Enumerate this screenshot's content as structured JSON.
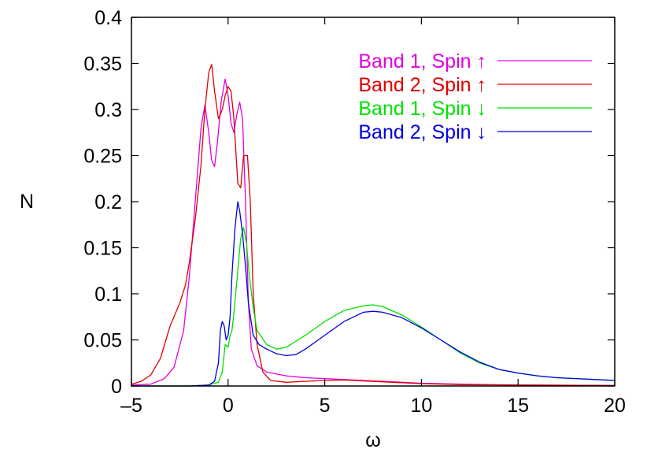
{
  "chart_data": {
    "type": "line",
    "title": "",
    "xlabel": "ω",
    "ylabel": "N",
    "xlim": [
      -5,
      20
    ],
    "ylim": [
      0,
      0.4
    ],
    "grid": false,
    "legend_position": "top-right",
    "xticks": [
      -5,
      0,
      5,
      10,
      15,
      20
    ],
    "xtick_labels": [
      "–5",
      "0",
      "5",
      "10",
      "15",
      "20"
    ],
    "yticks": [
      0,
      0.05,
      0.1,
      0.15,
      0.2,
      0.25,
      0.3,
      0.35,
      0.4
    ],
    "ytick_labels": [
      "0",
      "0.05",
      "0.1",
      "0.15",
      "0.2",
      "0.25",
      "0.3",
      "0.35",
      "0.4"
    ],
    "series": [
      {
        "name": "Band 1, Spin ↑",
        "color": "#e000e0",
        "points": [
          [
            -5,
            0.001
          ],
          [
            -4,
            0.002
          ],
          [
            -3.3,
            0.008
          ],
          [
            -2.8,
            0.02
          ],
          [
            -2.3,
            0.06
          ],
          [
            -2,
            0.12
          ],
          [
            -1.7,
            0.2
          ],
          [
            -1.4,
            0.28
          ],
          [
            -1.2,
            0.305
          ],
          [
            -1,
            0.275
          ],
          [
            -0.85,
            0.245
          ],
          [
            -0.7,
            0.238
          ],
          [
            -0.55,
            0.265
          ],
          [
            -0.35,
            0.31
          ],
          [
            -0.15,
            0.333
          ],
          [
            0,
            0.315
          ],
          [
            0.15,
            0.285
          ],
          [
            0.3,
            0.275
          ],
          [
            0.45,
            0.295
          ],
          [
            0.6,
            0.308
          ],
          [
            0.75,
            0.29
          ],
          [
            0.9,
            0.2
          ],
          [
            1.05,
            0.09
          ],
          [
            1.2,
            0.04
          ],
          [
            1.5,
            0.022
          ],
          [
            2,
            0.015
          ],
          [
            3,
            0.011
          ],
          [
            4,
            0.009
          ],
          [
            5,
            0.008
          ],
          [
            6,
            0.007
          ],
          [
            7,
            0.006
          ],
          [
            8,
            0.005
          ],
          [
            9,
            0.004
          ],
          [
            10,
            0.003
          ],
          [
            12,
            0.002
          ],
          [
            15,
            0.001
          ],
          [
            20,
            0.0005
          ]
        ]
      },
      {
        "name": "Band 2, Spin ↑",
        "color": "#e00000",
        "points": [
          [
            -5,
            0.002
          ],
          [
            -4.5,
            0.005
          ],
          [
            -4,
            0.012
          ],
          [
            -3.5,
            0.03
          ],
          [
            -3,
            0.065
          ],
          [
            -2.5,
            0.09
          ],
          [
            -2.2,
            0.11
          ],
          [
            -2,
            0.135
          ],
          [
            -1.7,
            0.18
          ],
          [
            -1.4,
            0.24
          ],
          [
            -1.2,
            0.3
          ],
          [
            -1,
            0.34
          ],
          [
            -0.85,
            0.349
          ],
          [
            -0.7,
            0.32
          ],
          [
            -0.5,
            0.29
          ],
          [
            -0.3,
            0.3
          ],
          [
            -0.15,
            0.315
          ],
          [
            0,
            0.325
          ],
          [
            0.15,
            0.32
          ],
          [
            0.3,
            0.29
          ],
          [
            0.5,
            0.22
          ],
          [
            0.65,
            0.215
          ],
          [
            0.8,
            0.25
          ],
          [
            1,
            0.25
          ],
          [
            1.15,
            0.2
          ],
          [
            1.3,
            0.1
          ],
          [
            1.5,
            0.045
          ],
          [
            1.8,
            0.015
          ],
          [
            2.2,
            0.006
          ],
          [
            3,
            0.004
          ],
          [
            4,
            0.005
          ],
          [
            5,
            0.006
          ],
          [
            6,
            0.0065
          ],
          [
            7,
            0.0055
          ],
          [
            8,
            0.0045
          ],
          [
            9,
            0.0035
          ],
          [
            10,
            0.0025
          ],
          [
            12,
            0.0015
          ],
          [
            15,
            0.001
          ],
          [
            20,
            0.0005
          ]
        ]
      },
      {
        "name": "Band 1, Spin ↓",
        "color": "#00e000",
        "points": [
          [
            -5,
            0
          ],
          [
            -2,
            0
          ],
          [
            -1,
            0.001
          ],
          [
            -0.5,
            0.004
          ],
          [
            -0.3,
            0.015
          ],
          [
            -0.15,
            0.045
          ],
          [
            0,
            0.042
          ],
          [
            0.1,
            0.055
          ],
          [
            0.2,
            0.06
          ],
          [
            0.35,
            0.09
          ],
          [
            0.5,
            0.125
          ],
          [
            0.65,
            0.16
          ],
          [
            0.8,
            0.172
          ],
          [
            0.95,
            0.155
          ],
          [
            1.1,
            0.12
          ],
          [
            1.3,
            0.085
          ],
          [
            1.5,
            0.06
          ],
          [
            2,
            0.045
          ],
          [
            2.5,
            0.04
          ],
          [
            3,
            0.042
          ],
          [
            4,
            0.055
          ],
          [
            5,
            0.07
          ],
          [
            6,
            0.082
          ],
          [
            7,
            0.087
          ],
          [
            7.5,
            0.088
          ],
          [
            8,
            0.086
          ],
          [
            9,
            0.077
          ],
          [
            10,
            0.064
          ],
          [
            11,
            0.05
          ],
          [
            12,
            0.036
          ],
          [
            13,
            0.025
          ],
          [
            14,
            0.018
          ],
          [
            15,
            0.014
          ],
          [
            16,
            0.011
          ],
          [
            17,
            0.009
          ],
          [
            18,
            0.008
          ],
          [
            19,
            0.007
          ],
          [
            20,
            0.006
          ]
        ]
      },
      {
        "name": "Band 2, Spin ↓",
        "color": "#0000e0",
        "points": [
          [
            -5,
            0
          ],
          [
            -2,
            0
          ],
          [
            -1,
            0.001
          ],
          [
            -0.7,
            0.005
          ],
          [
            -0.5,
            0.025
          ],
          [
            -0.4,
            0.06
          ],
          [
            -0.3,
            0.07
          ],
          [
            -0.2,
            0.065
          ],
          [
            -0.1,
            0.05
          ],
          [
            0,
            0.055
          ],
          [
            0.1,
            0.075
          ],
          [
            0.2,
            0.12
          ],
          [
            0.35,
            0.17
          ],
          [
            0.5,
            0.2
          ],
          [
            0.6,
            0.19
          ],
          [
            0.75,
            0.165
          ],
          [
            0.9,
            0.13
          ],
          [
            1.05,
            0.09
          ],
          [
            1.3,
            0.055
          ],
          [
            1.6,
            0.045
          ],
          [
            2,
            0.04
          ],
          [
            2.5,
            0.035
          ],
          [
            3,
            0.033
          ],
          [
            3.5,
            0.034
          ],
          [
            4,
            0.04
          ],
          [
            5,
            0.055
          ],
          [
            6,
            0.07
          ],
          [
            7,
            0.08
          ],
          [
            7.5,
            0.081
          ],
          [
            8,
            0.08
          ],
          [
            9,
            0.074
          ],
          [
            10,
            0.063
          ],
          [
            11,
            0.05
          ],
          [
            12,
            0.037
          ],
          [
            13,
            0.026
          ],
          [
            14,
            0.018
          ],
          [
            15,
            0.014
          ],
          [
            16,
            0.011
          ],
          [
            17,
            0.009
          ],
          [
            18,
            0.008
          ],
          [
            19,
            0.007
          ],
          [
            20,
            0.006
          ]
        ]
      }
    ]
  }
}
